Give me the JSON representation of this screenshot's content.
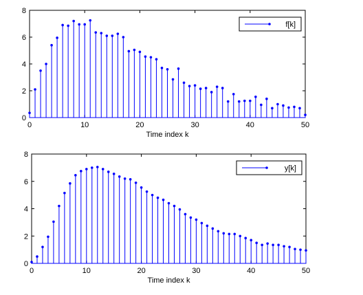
{
  "chart_data": [
    {
      "type": "stem",
      "xlabel": "Time index k",
      "xlim": [
        0,
        50
      ],
      "ylim": [
        0,
        8
      ],
      "xticks": [
        0,
        10,
        20,
        30,
        40,
        50
      ],
      "yticks": [
        0,
        2,
        4,
        6,
        8
      ],
      "legend": "top-right",
      "series": [
        {
          "name": "f[k]",
          "color": "#0000ff",
          "x": [
            0,
            1,
            2,
            3,
            4,
            5,
            6,
            7,
            8,
            9,
            10,
            11,
            12,
            13,
            14,
            15,
            16,
            17,
            18,
            19,
            20,
            21,
            22,
            23,
            24,
            25,
            26,
            27,
            28,
            29,
            30,
            31,
            32,
            33,
            34,
            35,
            36,
            37,
            38,
            39,
            40,
            41,
            42,
            43,
            44,
            45,
            46,
            47,
            48,
            49,
            50
          ],
          "values": [
            0.35,
            2.1,
            3.5,
            4.0,
            5.4,
            5.95,
            6.9,
            6.85,
            7.2,
            6.95,
            6.95,
            7.25,
            6.35,
            6.3,
            6.1,
            6.1,
            6.25,
            6.0,
            4.95,
            5.05,
            4.9,
            4.55,
            4.5,
            4.35,
            3.7,
            3.6,
            2.85,
            3.65,
            2.6,
            2.35,
            2.4,
            2.15,
            2.2,
            1.9,
            2.3,
            2.2,
            1.2,
            1.75,
            1.2,
            1.25,
            1.25,
            1.55,
            0.95,
            1.4,
            0.7,
            1.0,
            0.9,
            0.75,
            0.8,
            0.7,
            0.2
          ]
        }
      ]
    },
    {
      "type": "stem",
      "xlabel": "Time index k",
      "xlim": [
        0,
        50
      ],
      "ylim": [
        0,
        8
      ],
      "xticks": [
        0,
        10,
        20,
        30,
        40,
        50
      ],
      "yticks": [
        0,
        2,
        4,
        6,
        8
      ],
      "legend": "top-right",
      "series": [
        {
          "name": "y[k]",
          "color": "#0000ff",
          "x": [
            0,
            1,
            2,
            3,
            4,
            5,
            6,
            7,
            8,
            9,
            10,
            11,
            12,
            13,
            14,
            15,
            16,
            17,
            18,
            19,
            20,
            21,
            22,
            23,
            24,
            25,
            26,
            27,
            28,
            29,
            30,
            31,
            32,
            33,
            34,
            35,
            36,
            37,
            38,
            39,
            40,
            41,
            42,
            43,
            44,
            45,
            46,
            47,
            48,
            49,
            50
          ],
          "values": [
            0.1,
            0.5,
            1.2,
            1.95,
            3.05,
            4.2,
            5.15,
            5.85,
            6.45,
            6.75,
            6.9,
            7.0,
            7.05,
            6.9,
            6.7,
            6.55,
            6.35,
            6.2,
            6.15,
            5.9,
            5.55,
            5.25,
            5.0,
            4.8,
            4.65,
            4.4,
            4.2,
            3.95,
            3.6,
            3.35,
            3.2,
            2.95,
            2.75,
            2.55,
            2.35,
            2.2,
            2.15,
            2.15,
            2.0,
            1.85,
            1.7,
            1.5,
            1.35,
            1.45,
            1.35,
            1.35,
            1.25,
            1.2,
            1.05,
            1.0,
            0.95
          ]
        }
      ]
    }
  ]
}
